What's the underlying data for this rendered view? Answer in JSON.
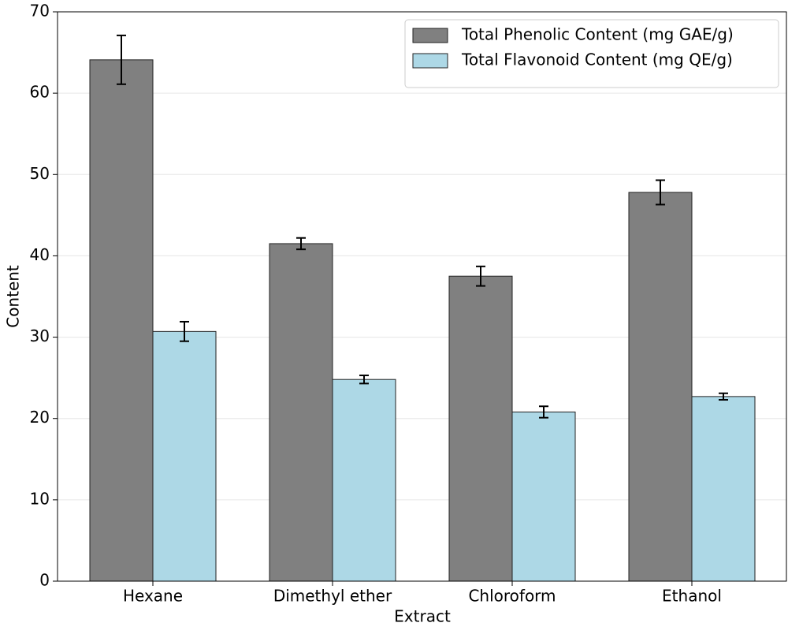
{
  "chart_data": {
    "type": "bar",
    "x_label": "Extract",
    "y_label": "Content",
    "categories": [
      "Hexane",
      "Dimethyl ether",
      "Chloroform",
      "Ethanol"
    ],
    "series": [
      {
        "name": "Total Phenolic Content (mg GAE/g)",
        "color": "#808080",
        "values": [
          64.1,
          41.5,
          37.5,
          47.8
        ],
        "errors": [
          3.0,
          0.7,
          1.2,
          1.5
        ]
      },
      {
        "name": "Total Flavonoid Content (mg QE/g)",
        "color": "#add8e6",
        "values": [
          30.7,
          24.8,
          20.8,
          22.7
        ],
        "errors": [
          1.2,
          0.5,
          0.7,
          0.4
        ]
      }
    ],
    "ylim": [
      0,
      70
    ],
    "yticks": [
      0,
      10,
      20,
      30,
      40,
      50,
      60,
      70
    ],
    "grid": true,
    "legend": "upper right"
  }
}
